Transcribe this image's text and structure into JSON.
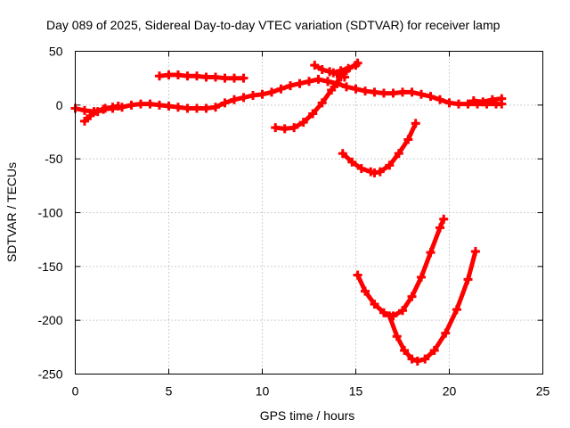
{
  "chart_data": {
    "type": "scatter",
    "title": "Day 089 of 2025, Sidereal Day-to-day VTEC variation (SDTVAR) for receiver lamp",
    "xlabel": "GPS time / hours",
    "ylabel": "SDTVAR / TECUs",
    "xlim": [
      0,
      25
    ],
    "ylim": [
      -250,
      50
    ],
    "xticks": [
      0,
      5,
      10,
      15,
      20,
      25
    ],
    "yticks": [
      -250,
      -200,
      -150,
      -100,
      -50,
      0,
      50
    ],
    "grid": true,
    "legend": "none",
    "color": "#ff0000",
    "series": [
      {
        "x": [
          0.0,
          0.5,
          1.0,
          1.5,
          2.0,
          2.5,
          3.0,
          3.5,
          4.0,
          4.5,
          5.0,
          5.5,
          6.0,
          6.5,
          7.0,
          7.5,
          8.0,
          8.5,
          9.0,
          9.5,
          10.0,
          10.5,
          11.0,
          11.5,
          12.0,
          12.5,
          13.0,
          13.5,
          14.0
        ],
        "y": [
          -3,
          -5,
          -6,
          -4,
          -3,
          -2,
          0,
          1,
          1,
          0,
          -1,
          -2,
          -3,
          -3,
          -3,
          -2,
          2,
          5,
          7,
          9,
          10,
          12,
          15,
          18,
          20,
          22,
          24,
          22,
          20
        ]
      },
      {
        "x": [
          0.5,
          0.8,
          1.2,
          1.6,
          2.0,
          2.3
        ],
        "y": [
          -15,
          -10,
          -6,
          -3,
          -2,
          -1
        ]
      },
      {
        "x": [
          4.5,
          5.0,
          5.5,
          6.0,
          6.5,
          7.0,
          7.5,
          8.0,
          8.5,
          9.0
        ],
        "y": [
          27,
          28,
          28,
          27,
          27,
          26,
          26,
          25,
          25,
          25
        ]
      },
      {
        "x": [
          13.5,
          14.0,
          14.5,
          15.0,
          15.5,
          16.0,
          16.5,
          17.0,
          17.5,
          18.0,
          18.5,
          19.0,
          19.5,
          20.0,
          20.5,
          21.0,
          21.5,
          22.0,
          22.5,
          22.8
        ],
        "y": [
          22,
          20,
          17,
          15,
          13,
          12,
          11,
          11,
          12,
          12,
          10,
          8,
          5,
          2,
          1,
          1,
          1,
          1,
          1,
          1
        ]
      },
      {
        "x": [
          21.3,
          21.8,
          22.3,
          22.8
        ],
        "y": [
          4,
          3,
          5,
          6
        ]
      },
      {
        "x": [
          12.8,
          13.2,
          13.6,
          14.0,
          14.4
        ],
        "y": [
          37,
          33,
          31,
          29,
          26
        ]
      },
      {
        "x": [
          10.7,
          11.2,
          11.7,
          12.2,
          12.7,
          13.2,
          13.7,
          14.2,
          14.5
        ],
        "y": [
          -21,
          -22,
          -21,
          -16,
          -8,
          2,
          14,
          26,
          32
        ]
      },
      {
        "x": [
          13.8,
          14.2,
          14.6,
          15.0,
          15.1
        ],
        "y": [
          30,
          32,
          34,
          37,
          39
        ]
      },
      {
        "x": [
          14.3,
          14.8,
          15.3,
          15.8,
          16.0,
          16.3,
          16.8,
          17.3,
          17.8,
          18.2
        ],
        "y": [
          -45,
          -53,
          -59,
          -62,
          -63,
          -62,
          -56,
          -45,
          -32,
          -17
        ]
      },
      {
        "x": [
          15.1,
          15.5,
          16.0,
          16.5,
          17.0,
          17.5,
          18.0,
          18.5,
          19.0,
          19.5,
          19.7
        ],
        "y": [
          -158,
          -173,
          -185,
          -193,
          -196,
          -191,
          -178,
          -160,
          -137,
          -114,
          -106
        ]
      },
      {
        "x": [
          16.8,
          17.2,
          17.6,
          18.0,
          18.3,
          18.7,
          19.2,
          19.8,
          20.4,
          21.0,
          21.4
        ],
        "y": [
          -196,
          -215,
          -228,
          -236,
          -238,
          -236,
          -228,
          -212,
          -190,
          -162,
          -136
        ]
      }
    ]
  }
}
